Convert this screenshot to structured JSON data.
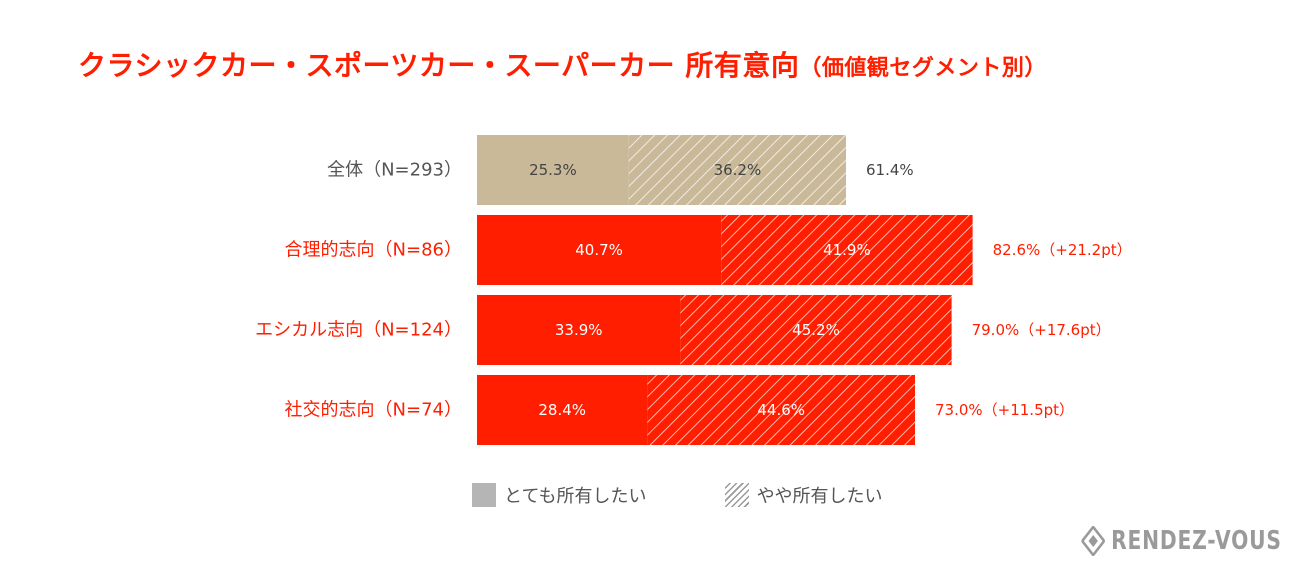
{
  "title": {
    "main": "クラシックカー・スポーツカー・スーパーカー 所有意向",
    "sub": "（価値観セグメント別）"
  },
  "colors": {
    "title": "#ff1e00",
    "base_fill": "#c9b998",
    "segment_fill": "#ff1e00",
    "hatch_base": "#ffffff",
    "hatch_segment": "#ffffff"
  },
  "chart_data": {
    "type": "bar",
    "orientation": "horizontal",
    "stacked": true,
    "categories": [
      "全体（N=293）",
      "合理的志向（N=86）",
      "エシカル志向（N=124）",
      "社交的志向（N=74）"
    ],
    "series": [
      {
        "name": "とても所有したい",
        "values": [
          25.3,
          40.7,
          33.9,
          28.4
        ],
        "labels": [
          "25.3%",
          "40.7%",
          "33.9%",
          "28.4%"
        ]
      },
      {
        "name": "やや所有したい",
        "values": [
          36.2,
          41.9,
          45.2,
          44.6
        ],
        "labels": [
          "36.2%",
          "41.9%",
          "45.2%",
          "44.6%"
        ]
      }
    ],
    "totals": [
      61.4,
      82.6,
      79.0,
      73.0
    ],
    "total_labels": [
      "61.4%",
      "82.6%（+21.2pt）",
      "79.0%（+17.6pt）",
      "73.0%（+11.5pt）"
    ],
    "xlim": [
      0,
      100
    ],
    "grid": false,
    "legend": "bottom"
  },
  "legend": {
    "items": [
      "とても所有したい",
      "やや所有したい"
    ]
  },
  "brand": {
    "name": "RENDEZ-VOUS",
    "icon": "rendez-vous-logo-icon"
  }
}
